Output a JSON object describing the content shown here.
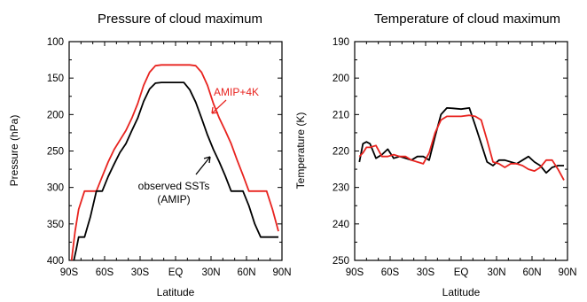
{
  "chart_data": [
    {
      "type": "line",
      "title": "Pressure of cloud maximum",
      "xlabel": "Latitude",
      "ylabel": "Pressure (hPa)",
      "xlim": [
        -90,
        90
      ],
      "ylim": [
        100,
        400
      ],
      "y_inverted": true,
      "xticks": [
        "90S",
        "60S",
        "30S",
        "EQ",
        "30N",
        "60N",
        "90N"
      ],
      "yticks": [
        "100",
        "150",
        "200",
        "250",
        "300",
        "350",
        "400"
      ],
      "annotations": [
        {
          "text": "AMIP+4K",
          "color": "#e8231f"
        },
        {
          "text": "observed SSTs",
          "color": "#000000"
        },
        {
          "text": "(AMIP)",
          "color": "#000000"
        }
      ],
      "series": [
        {
          "name": "AMIP+4K",
          "color": "#e8231f",
          "x": [
            -88,
            -85,
            -82,
            -77,
            -72,
            -67,
            -62,
            -57,
            -52,
            -47,
            -42,
            -37,
            -32,
            -27,
            -22,
            -17,
            -12,
            -7,
            0,
            7,
            12,
            17,
            22,
            27,
            32,
            37,
            42,
            47,
            52,
            57,
            62,
            67,
            72,
            77,
            82,
            87
          ],
          "y": [
            400,
            360,
            330,
            305,
            305,
            305,
            285,
            265,
            248,
            235,
            222,
            205,
            185,
            160,
            142,
            133,
            132,
            132,
            132,
            132,
            132,
            133,
            142,
            160,
            185,
            205,
            222,
            240,
            262,
            283,
            305,
            305,
            305,
            305,
            330,
            360
          ]
        },
        {
          "name": "observed SSTs (AMIP)",
          "color": "#000000",
          "x": [
            -86,
            -84,
            -82,
            -77,
            -72,
            -67,
            -62,
            -57,
            -52,
            -47,
            -42,
            -37,
            -32,
            -27,
            -22,
            -17,
            -12,
            -7,
            0,
            7,
            12,
            17,
            22,
            27,
            32,
            37,
            42,
            47,
            52,
            57,
            62,
            67,
            72,
            77,
            82,
            87
          ],
          "y": [
            400,
            385,
            368,
            368,
            340,
            305,
            305,
            285,
            268,
            252,
            240,
            222,
            205,
            182,
            165,
            157,
            156,
            156,
            156,
            156,
            166,
            183,
            205,
            228,
            248,
            265,
            284,
            305,
            305,
            305,
            325,
            350,
            368,
            368,
            368,
            368
          ]
        }
      ]
    },
    {
      "type": "line",
      "title": "Temperature of cloud maximum",
      "xlabel": "Latitude",
      "ylabel": "Temperature (K)",
      "xlim": [
        -90,
        90
      ],
      "ylim": [
        190,
        250
      ],
      "y_inverted": true,
      "xticks": [
        "90S",
        "60S",
        "30S",
        "EQ",
        "30N",
        "60N",
        "90N"
      ],
      "yticks": [
        "190",
        "200",
        "210",
        "220",
        "230",
        "240",
        "250"
      ],
      "series": [
        {
          "name": "observed SSTs (AMIP)",
          "color": "#000000",
          "x": [
            -86,
            -83,
            -80,
            -77,
            -72,
            -67,
            -62,
            -57,
            -52,
            -47,
            -42,
            -37,
            -32,
            -27,
            -22,
            -17,
            -12,
            -7,
            0,
            7,
            12,
            17,
            22,
            27,
            32,
            37,
            42,
            47,
            52,
            57,
            62,
            67,
            72,
            77,
            82,
            87
          ],
          "y": [
            223,
            218,
            217.5,
            218,
            222,
            221,
            219.5,
            222,
            221.5,
            222,
            222.5,
            221.5,
            221.5,
            222.5,
            216,
            210,
            208.2,
            208.3,
            208.5,
            208.2,
            213,
            218,
            223,
            224,
            222.5,
            222.5,
            223,
            223.5,
            222.5,
            221.5,
            223,
            224,
            226,
            224.5,
            224,
            224
          ]
        },
        {
          "name": "AMIP+4K",
          "color": "#e8231f",
          "x": [
            -86,
            -83,
            -80,
            -77,
            -72,
            -67,
            -62,
            -57,
            -52,
            -47,
            -42,
            -37,
            -32,
            -27,
            -22,
            -17,
            -12,
            -7,
            0,
            7,
            12,
            17,
            22,
            27,
            32,
            37,
            42,
            47,
            52,
            57,
            62,
            67,
            72,
            77,
            82,
            87
          ],
          "y": [
            221.5,
            220.5,
            219,
            219,
            218.5,
            221.5,
            221.5,
            221,
            221.5,
            221.5,
            222.5,
            223,
            223.5,
            220.5,
            215,
            211.5,
            210.5,
            210.5,
            210.5,
            210.2,
            210.5,
            211.5,
            217,
            223,
            223.5,
            224.5,
            223.5,
            223.5,
            224,
            225,
            225.5,
            224.5,
            222.5,
            222.5,
            225,
            228
          ]
        }
      ]
    }
  ]
}
